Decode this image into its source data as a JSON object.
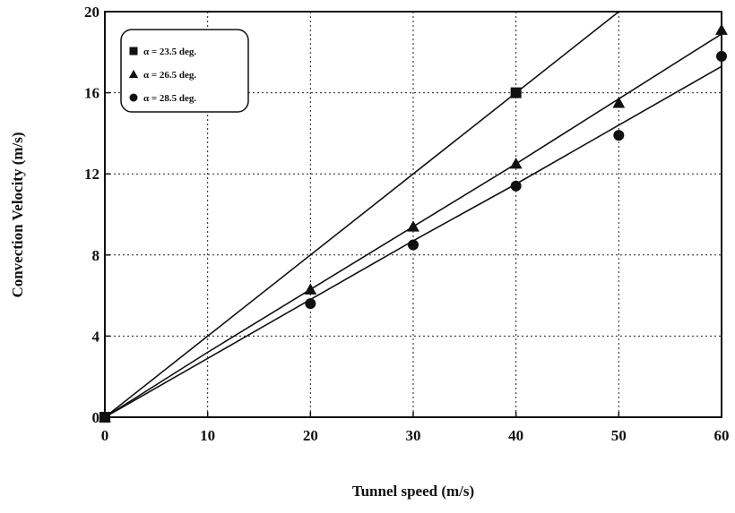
{
  "chart_data": {
    "type": "scatter",
    "title": "",
    "xlabel": "Tunnel speed (m/s)",
    "ylabel": "Convection Velocity (m/s)",
    "xlim": [
      0,
      60
    ],
    "ylim": [
      0,
      20
    ],
    "x_ticks": [
      "0",
      "10",
      "20",
      "30",
      "40",
      "50",
      "60"
    ],
    "y_ticks": [
      "0",
      "4",
      "8",
      "12",
      "16",
      "20"
    ],
    "grid": true,
    "legend_position": "top-left",
    "series": [
      {
        "name": "α = 23.5 deg.",
        "marker": "square",
        "points": [
          [
            0,
            0
          ],
          [
            40,
            16
          ]
        ],
        "fit": [
          [
            0,
            0
          ],
          [
            50.5,
            20.2
          ]
        ]
      },
      {
        "name": "α = 26.5 deg.",
        "marker": "triangle",
        "points": [
          [
            0,
            0
          ],
          [
            20,
            6.3
          ],
          [
            30,
            9.4
          ],
          [
            40,
            12.5
          ],
          [
            50,
            15.5
          ],
          [
            60,
            19.1
          ]
        ],
        "fit": [
          [
            0,
            0
          ],
          [
            10,
            3.2
          ],
          [
            20,
            6.3
          ],
          [
            30,
            9.4
          ],
          [
            40,
            12.5
          ],
          [
            50,
            15.7
          ],
          [
            60,
            18.9
          ]
        ]
      },
      {
        "name": "α = 28.5 deg.",
        "marker": "circle",
        "points": [
          [
            0,
            0
          ],
          [
            20,
            5.6
          ],
          [
            30,
            8.5
          ],
          [
            40,
            11.4
          ],
          [
            50,
            13.9
          ],
          [
            60,
            17.8
          ]
        ],
        "fit": [
          [
            0,
            0
          ],
          [
            10,
            2.9
          ],
          [
            20,
            5.8
          ],
          [
            30,
            8.7
          ],
          [
            40,
            11.5
          ],
          [
            50,
            14.4
          ],
          [
            60,
            17.3
          ]
        ]
      }
    ]
  }
}
